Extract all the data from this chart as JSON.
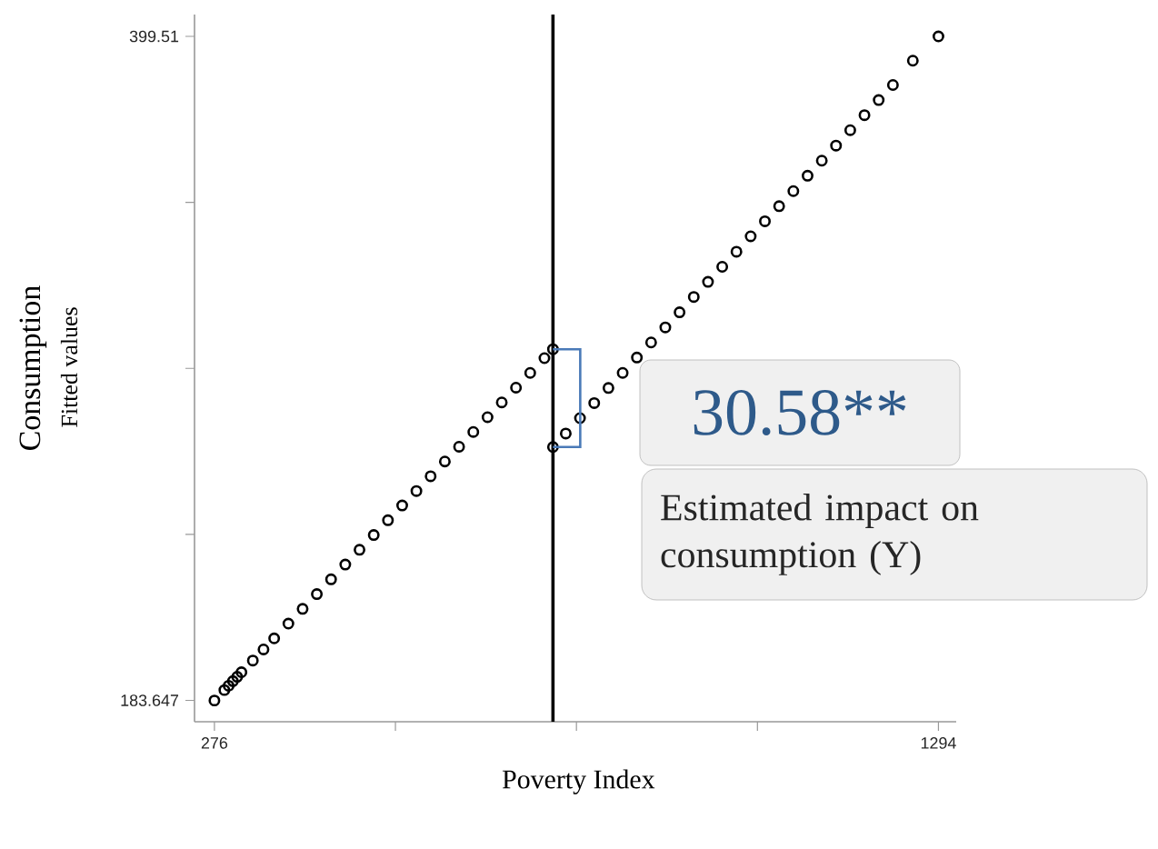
{
  "chart_data": {
    "type": "scatter",
    "xlabel": "Poverty Index",
    "ylabel": "Consumption",
    "xlim": [
      248,
      1319
    ],
    "ylim": [
      176.7,
      406.6
    ],
    "xticks": [
      276,
      {
        "value": 530.5,
        "label": null
      },
      {
        "value": 785,
        "label": null
      },
      {
        "value": 1039.5,
        "label": null
      },
      1294
    ],
    "yticks": [
      183.647,
      {
        "value": 237.613,
        "label": null
      },
      {
        "value": 291.579,
        "label": null
      },
      {
        "value": 345.544,
        "label": null
      },
      399.51
    ],
    "marker": "circle",
    "grid": false,
    "ref_lines": [
      {
        "axis": "x",
        "value": 752,
        "color": "#000000"
      }
    ],
    "annotations": [
      "30.58**",
      "Estimated impact on consumption (Y)",
      "Fitted values"
    ],
    "series": [
      {
        "color": "#000000",
        "x": [
          276,
          290,
          296,
          302,
          308,
          314,
          330,
          345,
          360,
          380,
          400,
          420,
          440,
          460,
          480,
          500,
          520,
          540,
          560,
          580,
          600,
          620,
          640,
          660,
          680,
          700,
          720,
          740,
          752
        ],
        "values": [
          183.6,
          187.0,
          188.4,
          189.9,
          191.3,
          192.8,
          196.6,
          200.2,
          203.8,
          208.6,
          213.4,
          218.2,
          223.0,
          227.8,
          232.6,
          237.4,
          242.2,
          247.0,
          251.7,
          256.5,
          261.3,
          266.1,
          270.9,
          275.7,
          280.5,
          285.3,
          290.1,
          294.9,
          297.8
        ]
      },
      {
        "color": "#000000",
        "x": [
          752,
          770,
          790,
          810,
          830,
          850,
          870,
          890,
          910,
          930,
          950,
          970,
          990,
          1010,
          1030,
          1050,
          1070,
          1090,
          1110,
          1130,
          1150,
          1170,
          1190,
          1210,
          1230,
          1258,
          1294
        ],
        "values": [
          266.0,
          270.4,
          275.4,
          280.3,
          285.2,
          290.1,
          295.1,
          300.0,
          304.9,
          309.8,
          314.8,
          319.7,
          324.6,
          329.5,
          334.5,
          339.4,
          344.3,
          349.2,
          354.2,
          359.1,
          364.0,
          369.0,
          373.9,
          378.8,
          383.7,
          391.6,
          399.5
        ]
      }
    ]
  }
}
